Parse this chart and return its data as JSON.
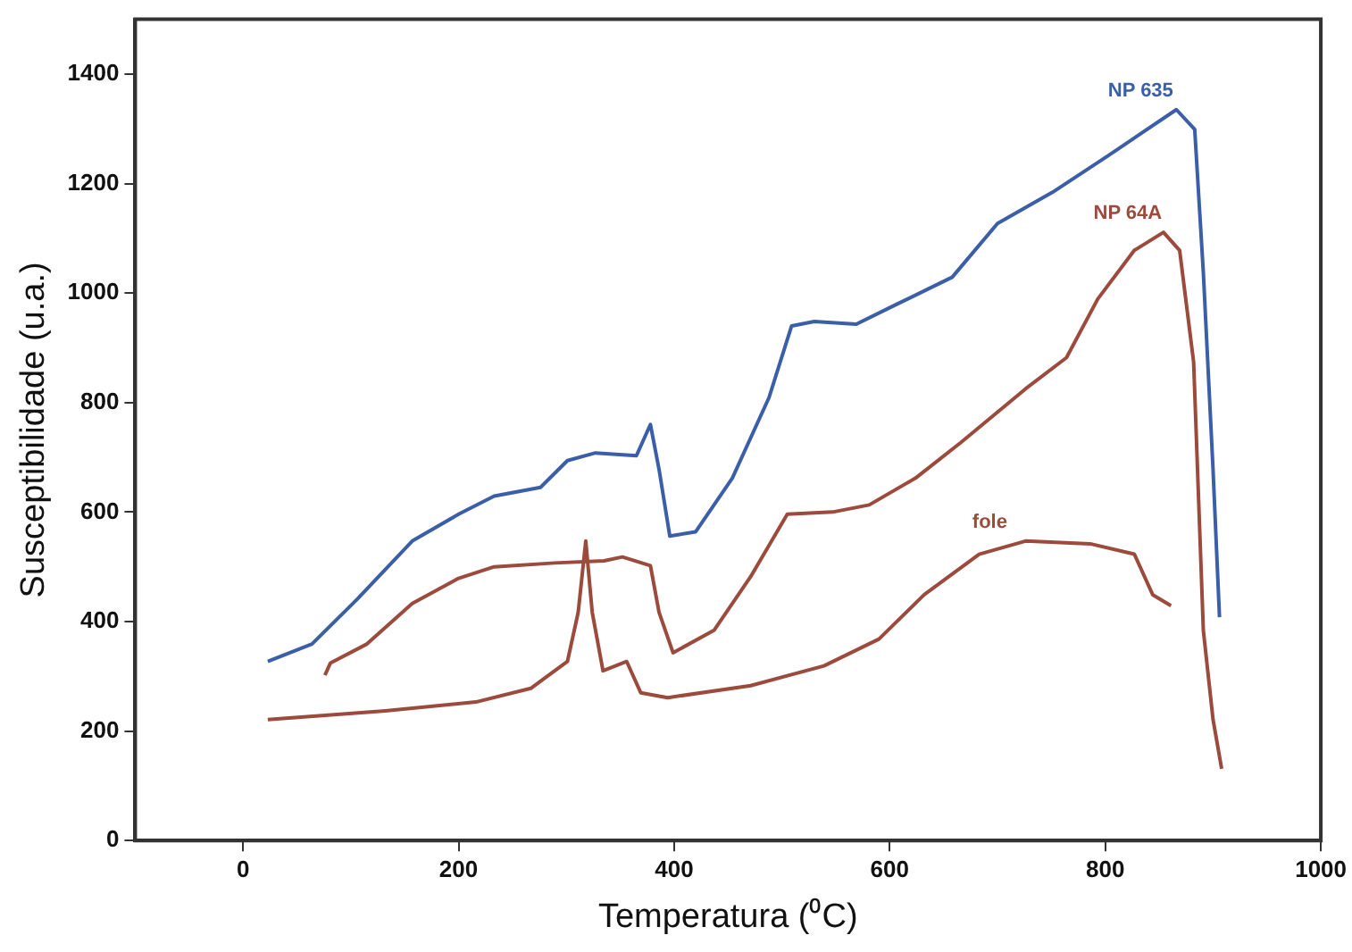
{
  "chart_data": {
    "type": "line",
    "xlabel": "Temperatura (⁰C)",
    "ylabel": "Susceptibilidade (u.a.)",
    "xlim": [
      -100,
      1000
    ],
    "xticks": [
      0,
      200,
      400,
      600,
      800,
      1000
    ],
    "ylim": [
      0,
      1500
    ],
    "yticks": [
      0,
      200,
      400,
      600,
      800,
      1000,
      1200,
      1400
    ],
    "grid": false,
    "legend": false,
    "marker": "none",
    "line_style": "solid",
    "series": [
      {
        "name": "NP 635",
        "color": "#3a5fa8",
        "x": [
          23,
          64,
          106,
          157,
          200,
          233,
          276,
          301,
          327,
          365,
          378,
          386,
          396,
          420,
          454,
          488,
          509,
          530,
          569,
          607,
          658,
          700,
          751,
          802,
          866,
          883,
          891,
          900,
          906
        ],
        "values": [
          327,
          359,
          441,
          547,
          596,
          629,
          645,
          694,
          708,
          703,
          760,
          678,
          556,
          564,
          662,
          809,
          940,
          948,
          943,
          980,
          1029,
          1127,
          1184,
          1250,
          1335,
          1299,
          1038,
          678,
          408
        ]
      },
      {
        "name": "NP 64A",
        "color": "#9c4a3c",
        "x": [
          76,
          81,
          115,
          157,
          200,
          233,
          289,
          335,
          352,
          378,
          386,
          399,
          437,
          471,
          505,
          547,
          581,
          624,
          666,
          726,
          764,
          793,
          827,
          854,
          869,
          882,
          891,
          900,
          908
        ],
        "values": [
          302,
          324,
          359,
          433,
          479,
          500,
          507,
          511,
          518,
          502,
          417,
          343,
          384,
          482,
          596,
          600,
          613,
          662,
          727,
          825,
          882,
          989,
          1078,
          1111,
          1078,
          874,
          384,
          221,
          131
        ]
      },
      {
        "name": "fole",
        "color": "#9c4a3c",
        "x": [
          23,
          132,
          216,
          267,
          301,
          311,
          318,
          324,
          334,
          356,
          369,
          394,
          471,
          539,
          590,
          632,
          683,
          726,
          786,
          827,
          844,
          861
        ],
        "values": [
          221,
          237,
          253,
          278,
          327,
          417,
          547,
          417,
          310,
          327,
          270,
          261,
          283,
          319,
          368,
          449,
          523,
          547,
          542,
          523,
          449,
          429
        ]
      }
    ]
  }
}
